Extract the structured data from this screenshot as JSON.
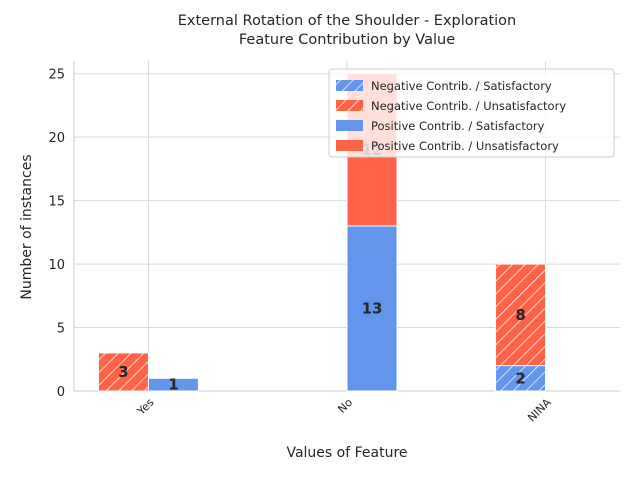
{
  "chart_data": {
    "type": "bar",
    "title": "External Rotation of the Shoulder - Exploration",
    "subtitle": "Feature Contribution by Value",
    "xlabel": "Values of Feature",
    "ylabel": "Number of instances",
    "ylim": [
      0,
      26
    ],
    "yticks": [
      0,
      5,
      10,
      15,
      20,
      25
    ],
    "grid": true,
    "legend_position": "top-right",
    "categories": [
      "Yes",
      "No",
      "NINA"
    ],
    "colors": {
      "satisfactory": "#6495ed",
      "unsatisfactory": "#ff6347"
    },
    "legend": [
      {
        "label": "Negative Contrib. / Satisfactory",
        "color": "#6495ed",
        "hatched": true
      },
      {
        "label": "Negative Contrib. / Unsatisfactory",
        "color": "#ff6347",
        "hatched": true
      },
      {
        "label": "Positive Contrib. / Satisfactory",
        "color": "#6495ed",
        "hatched": false
      },
      {
        "label": "Positive Contrib. / Unsatisfactory",
        "color": "#ff6347",
        "hatched": false
      }
    ],
    "stacks": [
      {
        "category": "Yes",
        "group": "left",
        "segments": [
          {
            "series": "Negative Contrib. / Satisfactory",
            "value": 0
          },
          {
            "series": "Negative Contrib. / Unsatisfactory",
            "value": 3,
            "label": "3"
          }
        ]
      },
      {
        "category": "Yes",
        "group": "right",
        "segments": [
          {
            "series": "Positive Contrib. / Satisfactory",
            "value": 1,
            "label": "1"
          },
          {
            "series": "Positive Contrib. / Unsatisfactory",
            "value": 0
          }
        ]
      },
      {
        "category": "No",
        "group": "right",
        "segments": [
          {
            "series": "Positive Contrib. / Satisfactory",
            "value": 13,
            "label": "13"
          },
          {
            "series": "Positive Contrib. / Unsatisfactory",
            "value": 12,
            "label": "12"
          }
        ]
      },
      {
        "category": "NINA",
        "group": "left",
        "segments": [
          {
            "series": "Negative Contrib. / Satisfactory",
            "value": 2,
            "label": "2"
          },
          {
            "series": "Negative Contrib. / Unsatisfactory",
            "value": 8,
            "label": "8"
          }
        ]
      }
    ]
  }
}
